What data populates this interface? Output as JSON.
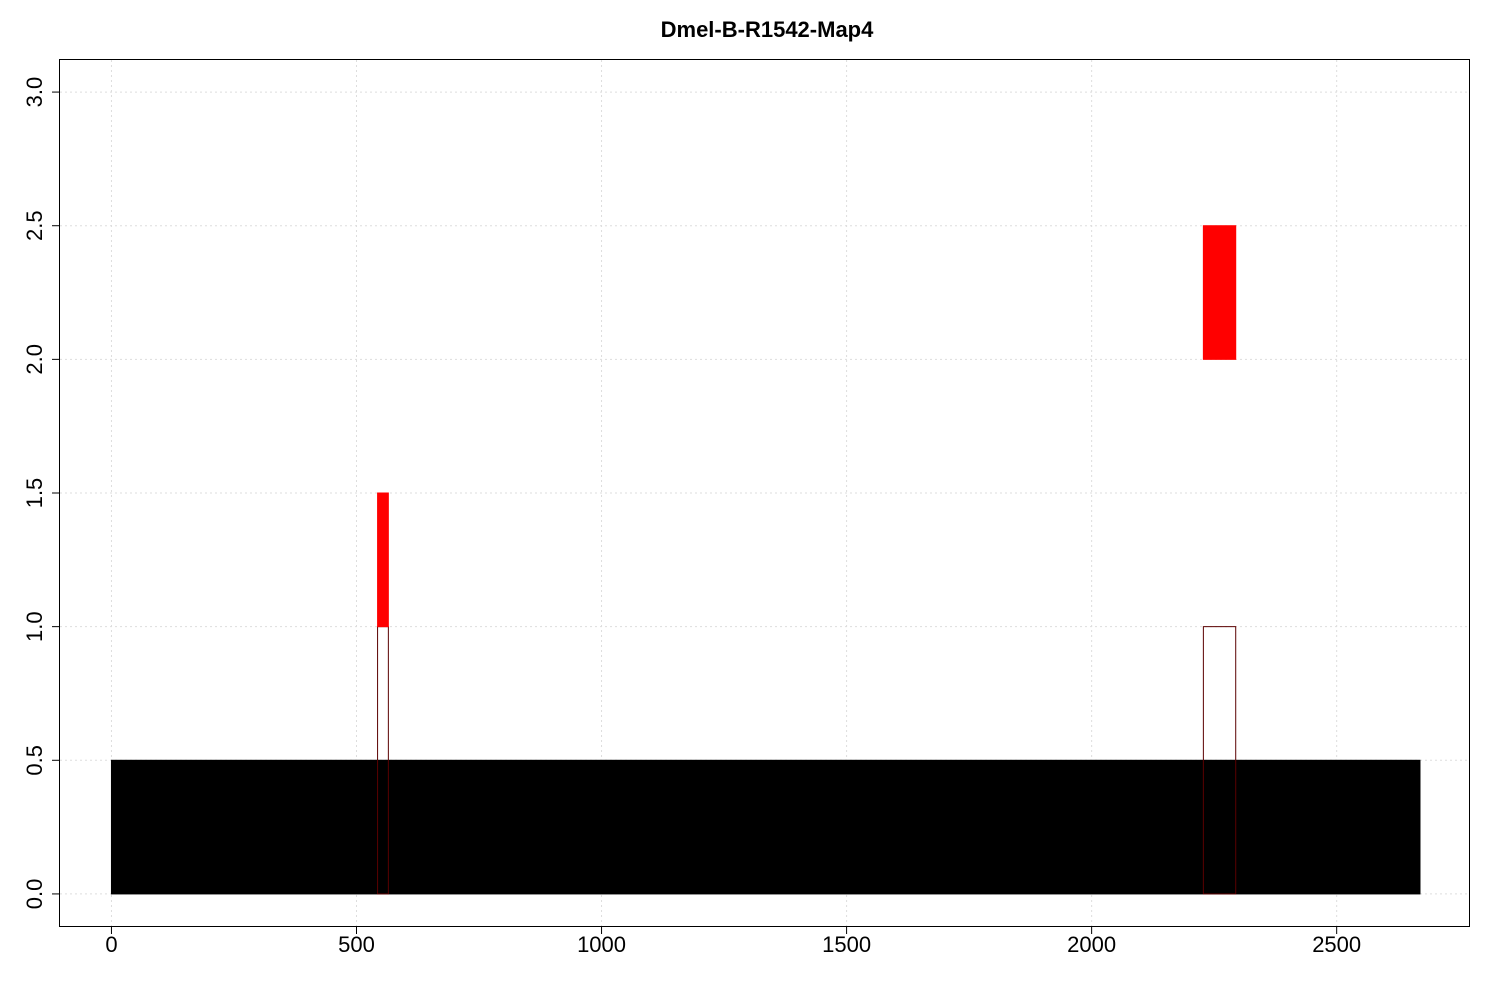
{
  "chart_data": {
    "type": "bar",
    "title": "Dmel-B-R1542-Map4",
    "xlabel": "",
    "ylabel": "",
    "xlim": [
      -105,
      2770
    ],
    "ylim": [
      -0.12,
      3.12
    ],
    "xticks": [
      0,
      500,
      1000,
      1500,
      2000,
      2500
    ],
    "yticks": [
      0.0,
      0.5,
      1.0,
      1.5,
      2.0,
      2.5,
      3.0
    ],
    "x_tick_labels": [
      "0",
      "500",
      "1000",
      "1500",
      "2000",
      "2500"
    ],
    "y_tick_labels": [
      "0.0",
      "0.5",
      "1.0",
      "1.5",
      "2.0",
      "2.5",
      "3.0"
    ],
    "grid": true,
    "segments": [
      {
        "name": "sequence",
        "x_start": 0,
        "x_end": 2670,
        "y_bottom": 0.0,
        "y_top": 0.5,
        "fill": "#000000",
        "stroke": "#000000"
      },
      {
        "name": "hit-outline-1",
        "x_start": 543,
        "x_end": 565,
        "y_bottom": 0.0,
        "y_top": 1.0,
        "fill": "none",
        "stroke": "#5a0000"
      },
      {
        "name": "hit-outline-2",
        "x_start": 2228,
        "x_end": 2294,
        "y_bottom": 0.0,
        "y_top": 1.0,
        "fill": "none",
        "stroke": "#5a0000"
      },
      {
        "name": "hit-red-1",
        "x_start": 543,
        "x_end": 565,
        "y_bottom": 1.0,
        "y_top": 1.5,
        "fill": "#ff0000",
        "stroke": "#ff0000"
      },
      {
        "name": "hit-red-2",
        "x_start": 2228,
        "x_end": 2294,
        "y_bottom": 2.0,
        "y_top": 2.5,
        "fill": "#ff0000",
        "stroke": "#ff0000"
      }
    ]
  }
}
